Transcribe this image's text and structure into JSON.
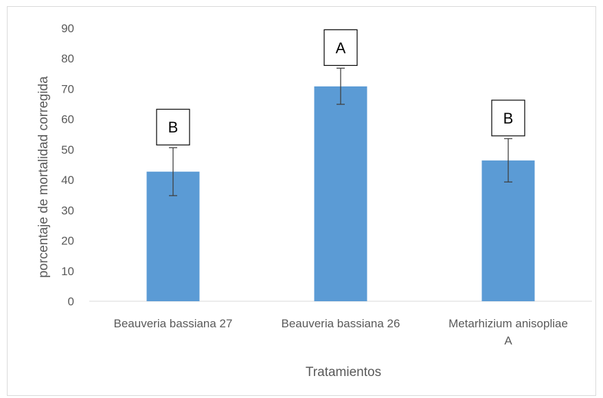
{
  "chart_data": {
    "type": "bar",
    "categories": [
      "Beauveria bassiana 27",
      "Beauveria bassiana 26",
      "Metarhizium anisopliae A"
    ],
    "category_lines": [
      [
        "Beauveria bassiana 27"
      ],
      [
        "Beauveria bassiana 26"
      ],
      [
        "Metarhizium anisopliae",
        "A"
      ]
    ],
    "values": [
      42.7,
      70.8,
      46.4
    ],
    "error_upper": [
      50.6,
      76.8,
      53.6
    ],
    "error_lower": [
      34.8,
      64.9,
      39.3
    ],
    "significance_letters": [
      "B",
      "A",
      "B"
    ],
    "xlabel": "Tratamientos",
    "ylabel": "porcentaje de mortalidad corregida",
    "ylim": [
      0,
      90
    ],
    "yticks": [
      0,
      10,
      20,
      30,
      40,
      50,
      60,
      70,
      80,
      90
    ],
    "grid": false,
    "legend": "none",
    "bar_color": "#5b9bd5",
    "error_color": "#404040"
  }
}
